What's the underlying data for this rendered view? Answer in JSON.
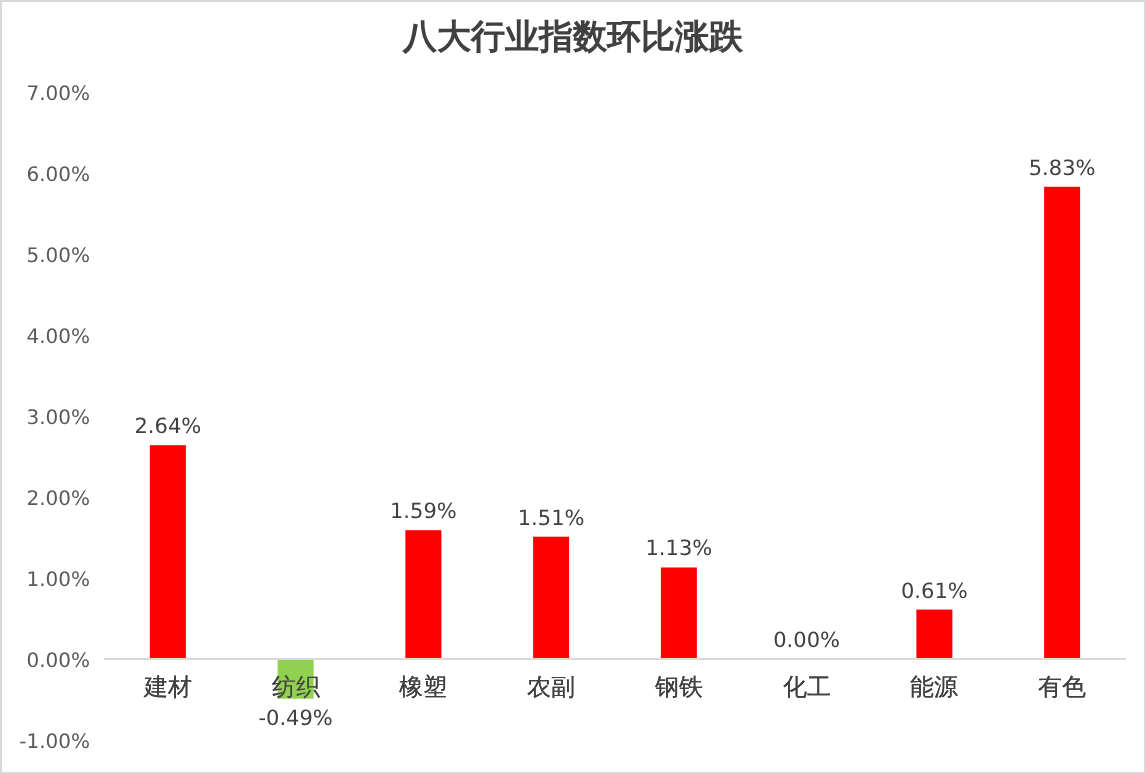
{
  "chart_data": {
    "type": "bar",
    "title": "八大行业指数环比涨跌",
    "categories": [
      "建材",
      "纺织",
      "橡塑",
      "农副",
      "钢铁",
      "化工",
      "能源",
      "有色"
    ],
    "values": [
      2.64,
      -0.49,
      1.59,
      1.51,
      1.13,
      0.0,
      0.61,
      5.83
    ],
    "colors": [
      "#ff0000",
      "#92d050",
      "#ff0000",
      "#ff0000",
      "#ff0000",
      "#ff0000",
      "#ff0000",
      "#ff0000"
    ],
    "value_labels": [
      "2.64%",
      "-0.49%",
      "1.59%",
      "1.51%",
      "1.13%",
      "0.00%",
      "0.61%",
      "5.83%"
    ],
    "ylim": [
      -1,
      7
    ],
    "yticks": [
      {
        "value": -1,
        "label": "-1.00%"
      },
      {
        "value": 0,
        "label": "0.00%"
      },
      {
        "value": 1,
        "label": "1.00%"
      },
      {
        "value": 2,
        "label": "2.00%"
      },
      {
        "value": 3,
        "label": "3.00%"
      },
      {
        "value": 4,
        "label": "4.00%"
      },
      {
        "value": 5,
        "label": "5.00%"
      },
      {
        "value": 6,
        "label": "6.00%"
      },
      {
        "value": 7,
        "label": "7.00%"
      }
    ],
    "grid": false
  }
}
